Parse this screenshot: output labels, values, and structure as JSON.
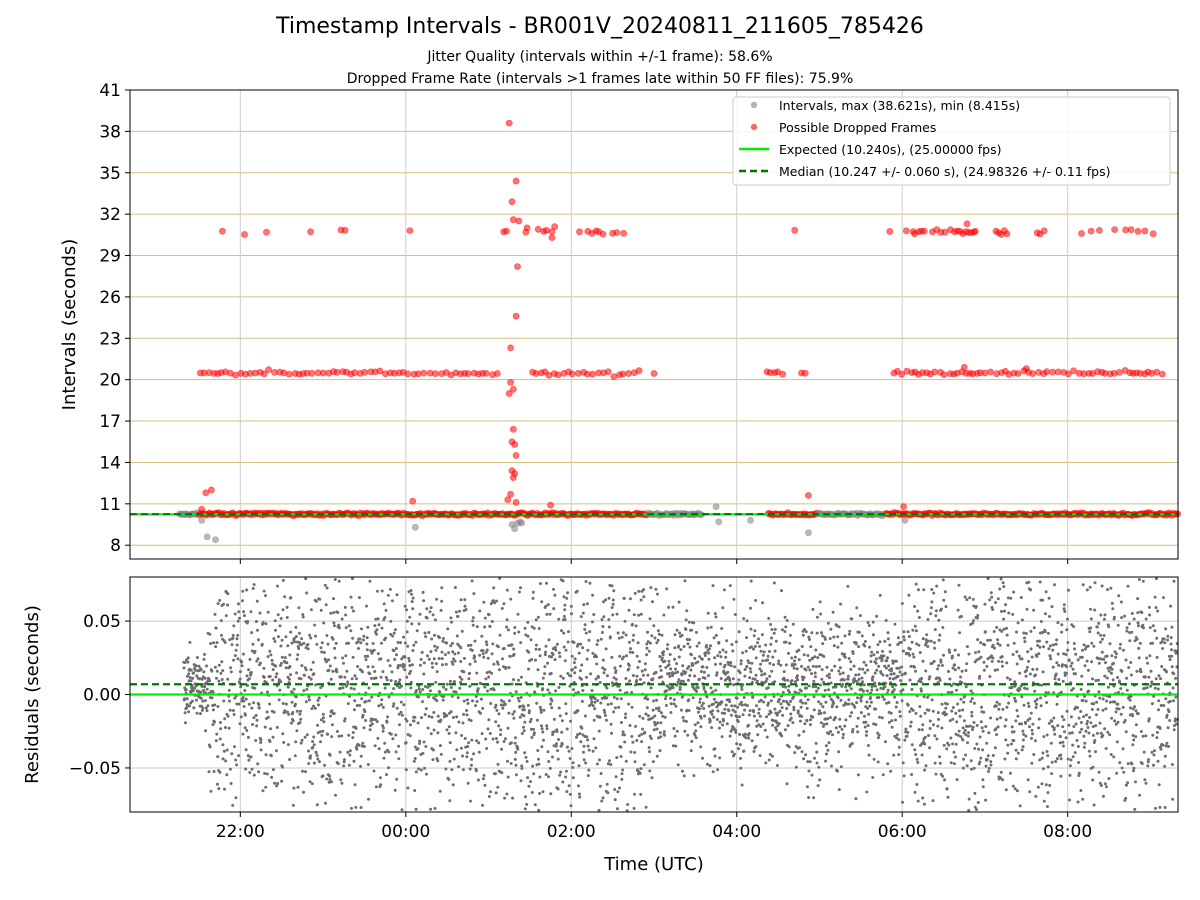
{
  "figure": {
    "title": "Timestamp Intervals - BR001V_20240811_211605_785426",
    "subtitle_1": "Jitter Quality (intervals within +/-1 frame): 58.6%",
    "subtitle_2": "Dropped Frame Rate (intervals >1 frames late within 50 FF files): 75.9%"
  },
  "colors": {
    "intervals": "#808080",
    "dropped": "#ff0000",
    "expected": "#00ee00",
    "median": "#007700",
    "gridline_y_top": "#d4c27a",
    "gridline": "#cccccc",
    "residual_points": "#6e6e6e"
  },
  "chart_data": [
    {
      "type": "scatter",
      "ylabel": "Intervals (seconds)",
      "yticks": [
        8,
        11,
        14,
        17,
        20,
        23,
        26,
        29,
        32,
        35,
        38,
        41
      ],
      "ylim": [
        7.0,
        41.0
      ],
      "x_range_utc": [
        "2024-08-11 20:40",
        "2024-08-12 09:20"
      ],
      "grid": true,
      "legend_position": "top-right",
      "legend": [
        "Intervals, max (38.621s), min (8.415s)",
        "Possible Dropped Frames",
        "Expected (10.240s), (25.00000 fps)",
        "Median (10.247 +/- 0.060 s), (24.98326 +/- 0.11 fps)"
      ],
      "expected_interval_s": 10.24,
      "median_interval_s": 10.247,
      "max_interval_s": 38.621,
      "min_interval_s": 8.415,
      "data_start_utc": "2024-08-11 21:16",
      "gap_utc": [
        "2024-08-12 03:35",
        "2024-08-12 04:22"
      ],
      "bands": [
        {
          "name": "normal",
          "y": 10.25
        },
        {
          "name": "one_dropped",
          "y": 20.48
        },
        {
          "name": "two_dropped",
          "y": 30.72
        }
      ],
      "outliers": [
        {
          "t": "21:35",
          "y": 11.8,
          "dropped": true
        },
        {
          "t": "21:39",
          "y": 12.0,
          "dropped": true
        },
        {
          "t": "21:32",
          "y": 10.6,
          "dropped": true
        },
        {
          "t": "21:36",
          "y": 8.6,
          "dropped": false
        },
        {
          "t": "21:42",
          "y": 8.4,
          "dropped": false
        },
        {
          "t": "21:32",
          "y": 9.8,
          "dropped": false
        },
        {
          "t": "00:05",
          "y": 11.2,
          "dropped": true
        },
        {
          "t": "00:07",
          "y": 9.3,
          "dropped": false
        },
        {
          "t": "01:15",
          "y": 38.6,
          "dropped": true
        },
        {
          "t": "01:20",
          "y": 34.4,
          "dropped": true
        },
        {
          "t": "01:17",
          "y": 32.9,
          "dropped": true
        },
        {
          "t": "01:18",
          "y": 31.6,
          "dropped": true
        },
        {
          "t": "01:22",
          "y": 31.5,
          "dropped": true
        },
        {
          "t": "01:21",
          "y": 28.2,
          "dropped": true
        },
        {
          "t": "01:20",
          "y": 24.6,
          "dropped": true
        },
        {
          "t": "01:16",
          "y": 22.3,
          "dropped": true
        },
        {
          "t": "01:16",
          "y": 19.8,
          "dropped": true
        },
        {
          "t": "01:15",
          "y": 19.0,
          "dropped": true
        },
        {
          "t": "01:18",
          "y": 19.3,
          "dropped": true
        },
        {
          "t": "01:18",
          "y": 16.4,
          "dropped": true
        },
        {
          "t": "01:17",
          "y": 15.5,
          "dropped": true
        },
        {
          "t": "01:19",
          "y": 15.3,
          "dropped": true
        },
        {
          "t": "01:20",
          "y": 14.5,
          "dropped": true
        },
        {
          "t": "01:17",
          "y": 13.4,
          "dropped": true
        },
        {
          "t": "01:19",
          "y": 13.2,
          "dropped": true
        },
        {
          "t": "01:18",
          "y": 12.9,
          "dropped": true
        },
        {
          "t": "01:16",
          "y": 11.7,
          "dropped": true
        },
        {
          "t": "01:20",
          "y": 11.1,
          "dropped": true
        },
        {
          "t": "01:14",
          "y": 11.3,
          "dropped": true
        },
        {
          "t": "01:17",
          "y": 9.5,
          "dropped": false
        },
        {
          "t": "01:19",
          "y": 9.2,
          "dropped": false
        },
        {
          "t": "01:21",
          "y": 9.6,
          "dropped": false
        },
        {
          "t": "01:23",
          "y": 9.7,
          "dropped": false
        },
        {
          "t": "01:24",
          "y": 9.6,
          "dropped": false
        },
        {
          "t": "01:45",
          "y": 10.9,
          "dropped": true
        },
        {
          "t": "01:36",
          "y": 30.9,
          "dropped": true
        },
        {
          "t": "01:46",
          "y": 30.3,
          "dropped": true
        },
        {
          "t": "01:48",
          "y": 31.1,
          "dropped": true
        },
        {
          "t": "01:28",
          "y": 31.0,
          "dropped": true
        },
        {
          "t": "03:45",
          "y": 10.8,
          "dropped": false
        },
        {
          "t": "03:47",
          "y": 9.7,
          "dropped": false
        },
        {
          "t": "04:10",
          "y": 9.8,
          "dropped": false
        },
        {
          "t": "04:52",
          "y": 11.6,
          "dropped": true
        },
        {
          "t": "04:52",
          "y": 8.9,
          "dropped": false
        },
        {
          "t": "06:01",
          "y": 10.8,
          "dropped": true
        },
        {
          "t": "06:02",
          "y": 9.8,
          "dropped": false
        },
        {
          "t": "06:47",
          "y": 31.3,
          "dropped": true
        },
        {
          "t": "06:45",
          "y": 20.9,
          "dropped": true
        },
        {
          "t": "07:30",
          "y": 20.8,
          "dropped": true
        }
      ]
    },
    {
      "type": "scatter",
      "xlabel": "Time (UTC)",
      "ylabel": "Residuals (seconds)",
      "ylim": [
        -0.08,
        0.08
      ],
      "yticks": [
        -0.05,
        0.0,
        0.05
      ],
      "ytick_labels": [
        "−0.05",
        "0.00",
        "0.05"
      ],
      "xticks": [
        "22:00",
        "00:00",
        "02:00",
        "04:00",
        "06:00",
        "08:00"
      ],
      "grid": true,
      "expected_residual": 0.0,
      "median_residual": 0.007
    }
  ]
}
